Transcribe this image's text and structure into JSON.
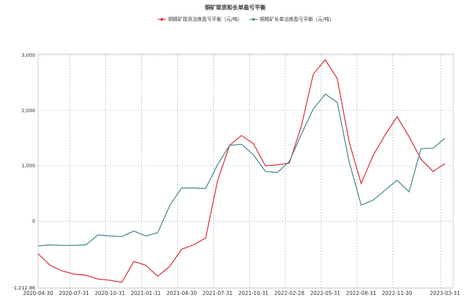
{
  "chart_data": {
    "type": "line",
    "title": "铜矿现货和长单盈亏平衡",
    "categories": [
      "2020-04-30",
      null,
      null,
      "2020-07-31",
      null,
      null,
      "2020-10-31",
      null,
      null,
      "2021-01-31",
      null,
      null,
      "2021-04-30",
      null,
      null,
      "2021-07-31",
      null,
      null,
      "2021-10-31",
      null,
      null,
      "2022-02-28",
      null,
      null,
      "2022-05-31",
      null,
      null,
      "2022-08-31",
      null,
      null,
      "2022-11-30",
      null,
      null,
      null,
      "2023-03-31"
    ],
    "series": [
      {
        "name": "铜精矿现货冶炼盈亏平衡（元/吨）",
        "color": "#d9323a",
        "values": [
          -590,
          -800,
          -900,
          -960,
          -980,
          -1050,
          -1070,
          -1110,
          -730,
          -800,
          -1000,
          -820,
          -510,
          -430,
          -310,
          730,
          1370,
          1550,
          1400,
          1000,
          1020,
          1050,
          1720,
          2660,
          2920,
          2580,
          1430,
          680,
          1190,
          1560,
          1890,
          1530,
          1120,
          900,
          1040
        ]
      },
      {
        "name": "铜精矿长单冶炼盈亏平衡（元/吨）",
        "color": "#4a8a8f",
        "values": [
          -450,
          -430,
          -440,
          -440,
          -430,
          -250,
          -270,
          -280,
          -180,
          -270,
          -210,
          280,
          600,
          600,
          590,
          1020,
          1370,
          1390,
          1200,
          900,
          880,
          1080,
          1570,
          2030,
          2300,
          2150,
          1070,
          290,
          380,
          560,
          740,
          530,
          1310,
          1320,
          1500
        ]
      }
    ],
    "ylim": [
      -1212.86,
      3000
    ],
    "yticks": [
      {
        "value": -1212.86,
        "label": "-1,212.86"
      },
      0,
      {
        "value": 1000,
        "label": "1,000"
      },
      {
        "value": 2000,
        "label": "2,000"
      },
      {
        "value": 3000,
        "label": "3,000"
      }
    ],
    "grid": true,
    "legend": "top"
  }
}
